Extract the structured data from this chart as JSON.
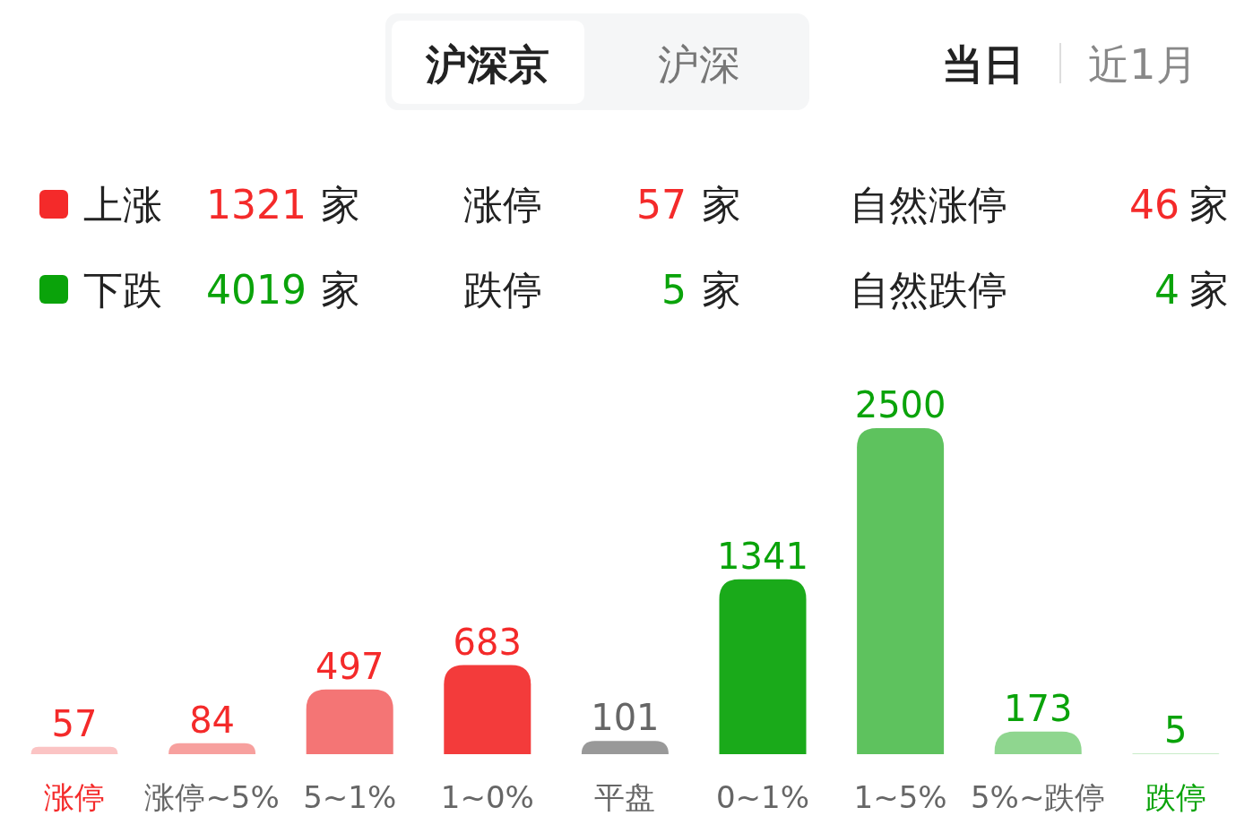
{
  "chart_data": [
    {
      "type": "other",
      "categories": [
        "上涨",
        "下跌",
        "涨停",
        "跌停",
        "自然涨停",
        "自然跌停"
      ],
      "values": [
        1321,
        4019,
        57,
        5,
        46,
        4
      ],
      "colors": [
        "#f42a2a",
        "#0aa30a",
        "#f42a2a",
        "#0aa30a",
        "#f42a2a",
        "#0aa30a"
      ],
      "annotations": [
        "沪深京",
        "沪深",
        "当日",
        "近1月",
        "家"
      ],
      "data_labels": true
    },
    {
      "type": "bar",
      "categories": [
        "涨停",
        "涨停~5%",
        "5~1%",
        "1~0%",
        "平盘",
        "0~1%",
        "1~5%",
        "5%~跌停",
        "跌停"
      ],
      "values": [
        57,
        84,
        497,
        683,
        101,
        1341,
        2500,
        173,
        5
      ],
      "colors": [
        "#fbc4c4",
        "#f7a09e",
        "#f47575",
        "#f33b3b",
        "#999999",
        "#1aaa1a",
        "#5ec25e",
        "#8fd68f",
        "#b8e6b8"
      ],
      "data_labels": true
    }
  ]
}
